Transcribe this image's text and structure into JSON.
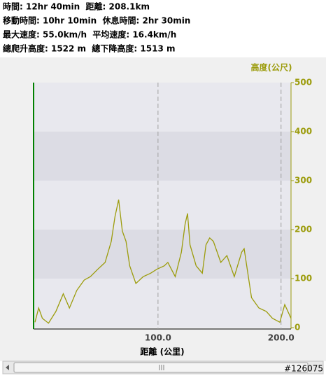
{
  "stats": [
    "時間: 12hr 40min  距離: 208.1km",
    "移動時間: 10hr 10min  休息時間: 2hr 30min",
    "最大速度: 55.0km/h  平均速度: 16.4km/h",
    "總爬升高度: 1522 m  總下降高度: 1513 m"
  ],
  "chart_data": {
    "type": "line",
    "y_label": "高度(公尺)",
    "x_label": "距離 (公里)",
    "color": "#9c9c0c",
    "x": [
      0,
      3,
      6,
      11,
      17,
      23,
      28,
      34,
      40,
      45,
      51,
      57,
      62,
      65,
      68,
      71,
      74,
      77,
      82,
      88,
      94,
      99,
      105,
      108,
      114,
      119,
      122,
      124,
      126,
      131,
      136,
      139,
      142,
      145,
      151,
      156,
      162,
      168,
      170,
      176,
      182,
      188,
      193,
      199,
      203,
      208.1
    ],
    "values": [
      11,
      40,
      19,
      9,
      33,
      69,
      40,
      76,
      97,
      104,
      119,
      133,
      176,
      226,
      261,
      197,
      176,
      126,
      90,
      104,
      111,
      119,
      126,
      133,
      104,
      154,
      211,
      233,
      169,
      126,
      111,
      169,
      183,
      176,
      133,
      147,
      104,
      154,
      161,
      61,
      40,
      33,
      19,
      11,
      47,
      19
    ],
    "xlim": [
      0,
      208.1
    ],
    "xticks": [
      {
        "value": 100,
        "label": "100.0"
      },
      {
        "value": 200,
        "label": "200.0"
      }
    ],
    "ylim": [
      0,
      500
    ],
    "yticks": [
      0,
      100,
      200,
      300,
      400,
      500
    ]
  },
  "footer_label": "#126075"
}
